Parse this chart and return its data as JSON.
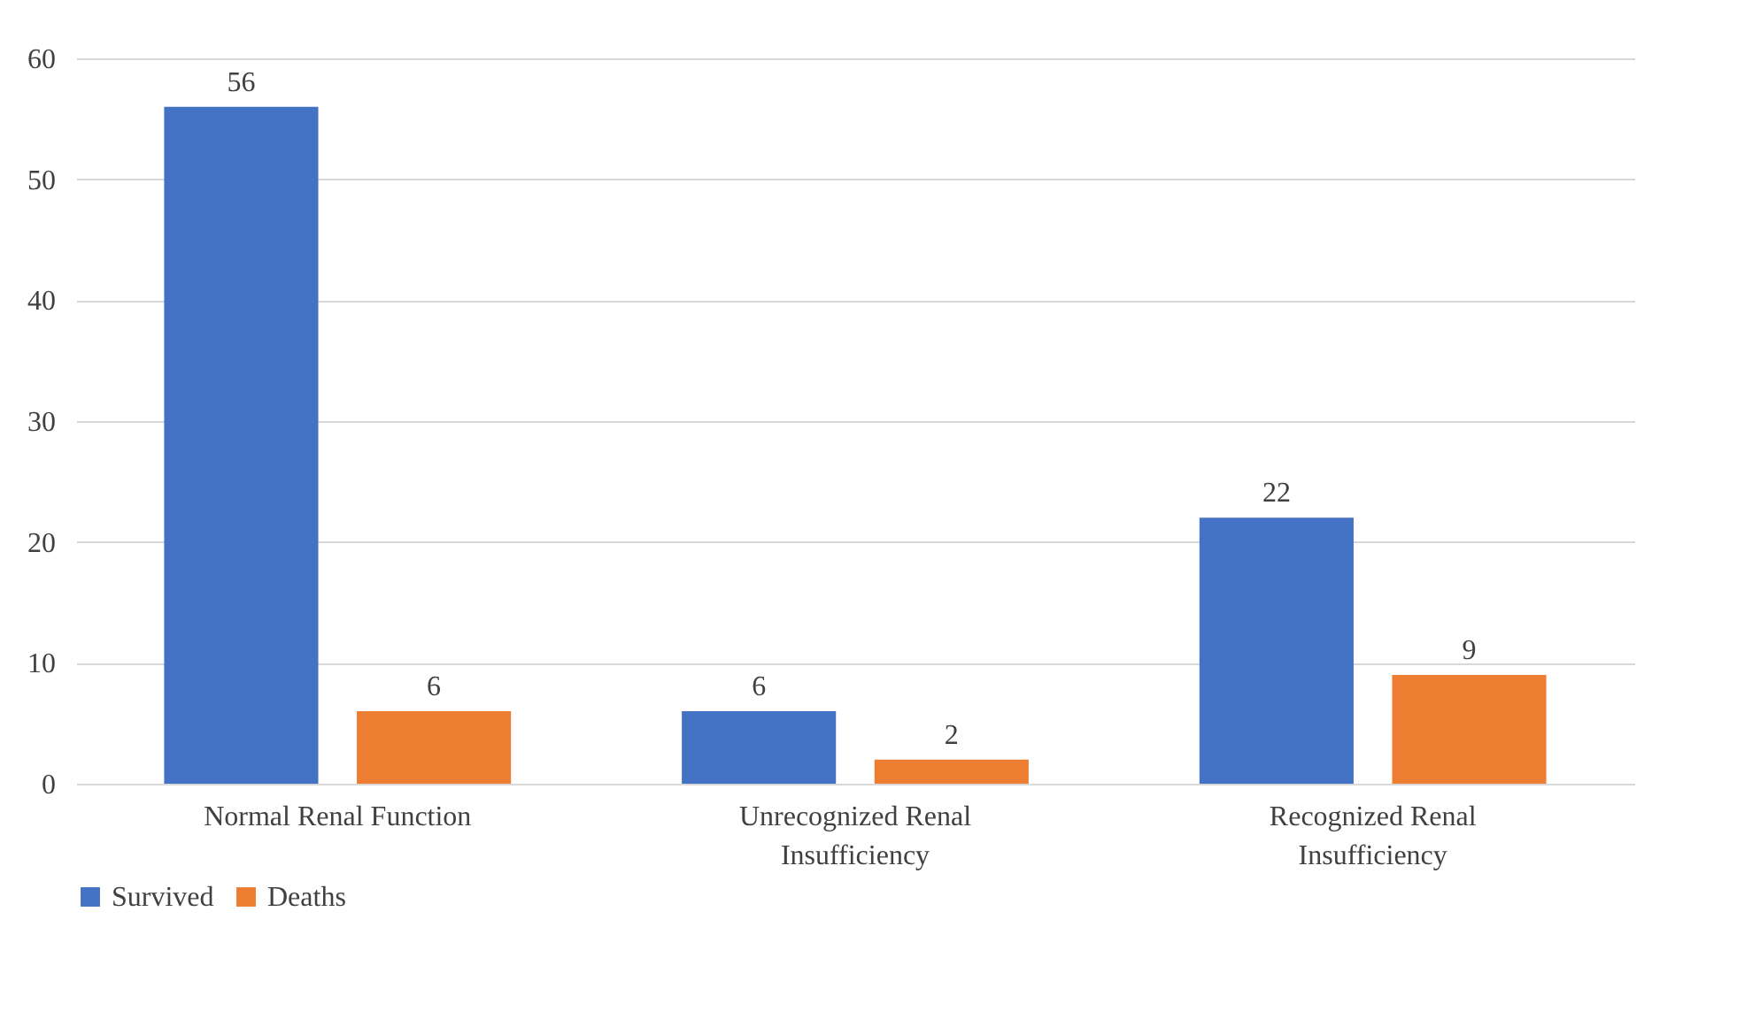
{
  "chart_data": {
    "type": "bar",
    "categories": [
      "Normal Renal Function",
      "Unrecognized Renal Insufficiency",
      "Recognized Renal Insufficiency"
    ],
    "series": [
      {
        "name": "Survived",
        "color": "#4472c4",
        "values": [
          56,
          6,
          22
        ]
      },
      {
        "name": "Deaths",
        "color": "#ed7d31",
        "values": [
          6,
          2,
          9
        ]
      }
    ],
    "ylim": [
      0,
      60
    ],
    "yticks": [
      0,
      10,
      20,
      30,
      40,
      50,
      60
    ],
    "grid": "y",
    "legend": "bottom",
    "data_labels": true
  }
}
